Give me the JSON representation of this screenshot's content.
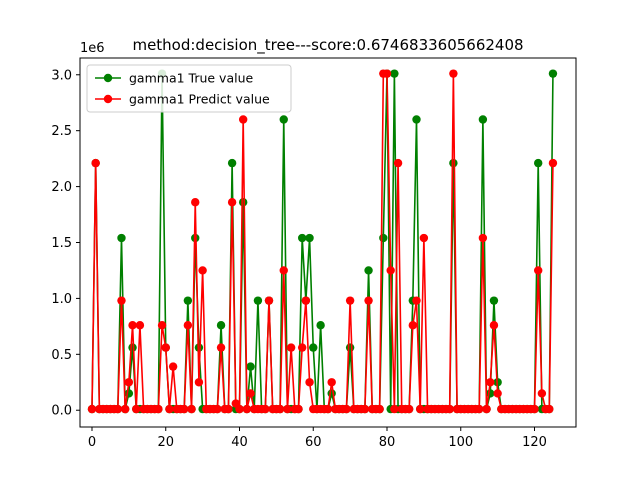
{
  "chart_data": {
    "type": "line",
    "title": "method:decision_tree---score:0.6746833605662408",
    "xlabel": "",
    "ylabel": "",
    "y_offset_label": "1e6",
    "xlim": [
      -3.25,
      131.25
    ],
    "ylim": [
      -0.15,
      3.15
    ],
    "x_ticks": [
      0,
      20,
      40,
      60,
      80,
      100,
      120
    ],
    "y_ticks": [
      0.0,
      0.5,
      1.0,
      1.5,
      2.0,
      2.5,
      3.0
    ],
    "y_tick_labels": [
      "0.0",
      "0.5",
      "1.0",
      "1.5",
      "2.0",
      "2.5",
      "3.0"
    ],
    "grid": false,
    "legend_position": "top-left",
    "series": [
      {
        "name": "gamma1 True value",
        "color": "#008000",
        "values": [
          0.01,
          2.21,
          0.01,
          0.01,
          0.01,
          0.01,
          0.01,
          0.01,
          1.54,
          0.01,
          0.15,
          0.56,
          0.01,
          0.01,
          0.01,
          0.01,
          0.01,
          0.01,
          0.01,
          3.01,
          0.56,
          0.01,
          0.01,
          0.01,
          0.01,
          0.01,
          0.98,
          0.01,
          1.54,
          0.56,
          0.01,
          0.01,
          0.01,
          0.01,
          0.01,
          0.76,
          0.01,
          0.01,
          2.21,
          0.01,
          0.01,
          1.86,
          0.01,
          0.39,
          0.01,
          0.98,
          0.01,
          0.01,
          0.98,
          0.01,
          0.01,
          0.01,
          2.6,
          0.01,
          0.01,
          0.01,
          0.01,
          1.54,
          0.98,
          1.54,
          0.56,
          0.01,
          0.76,
          0.01,
          0.01,
          0.15,
          0.01,
          0.01,
          0.01,
          0.01,
          0.56,
          0.01,
          0.01,
          0.01,
          0.01,
          1.25,
          0.01,
          0.01,
          0.01,
          1.54,
          3.01,
          0.01,
          3.01,
          0.01,
          0.01,
          0.01,
          0.01,
          0.98,
          2.6,
          0.01,
          0.01,
          0.01,
          0.01,
          0.01,
          0.01,
          0.01,
          0.01,
          0.01,
          2.21,
          0.01,
          0.01,
          0.01,
          0.01,
          0.01,
          0.01,
          0.01,
          2.6,
          0.01,
          0.15,
          0.98,
          0.25,
          0.01,
          0.01,
          0.01,
          0.01,
          0.01,
          0.01,
          0.01,
          0.01,
          0.01,
          0.01,
          2.21,
          0.01,
          0.01,
          0.01,
          3.01
        ]
      },
      {
        "name": "gamma1 Predict value",
        "color": "#ff0000",
        "values": [
          0.01,
          2.21,
          0.01,
          0.01,
          0.01,
          0.01,
          0.01,
          0.01,
          0.98,
          0.01,
          0.25,
          0.76,
          0.01,
          0.76,
          0.01,
          0.01,
          0.01,
          0.01,
          0.01,
          0.76,
          0.56,
          0.01,
          0.39,
          0.01,
          0.01,
          0.01,
          0.76,
          0.01,
          1.86,
          0.25,
          1.25,
          0.01,
          0.01,
          0.01,
          0.01,
          0.56,
          0.01,
          0.01,
          1.86,
          0.06,
          0.01,
          2.6,
          0.01,
          0.15,
          0.01,
          0.01,
          0.01,
          0.01,
          0.98,
          0.01,
          0.01,
          0.01,
          1.25,
          0.01,
          0.56,
          0.01,
          0.01,
          0.56,
          0.98,
          0.25,
          0.01,
          0.01,
          0.01,
          0.01,
          0.01,
          0.25,
          0.01,
          0.01,
          0.01,
          0.01,
          0.98,
          0.01,
          0.01,
          0.01,
          0.01,
          0.98,
          0.01,
          0.01,
          0.01,
          3.01,
          3.01,
          1.25,
          0.01,
          2.21,
          0.01,
          0.01,
          0.01,
          0.76,
          0.98,
          0.01,
          1.54,
          0.01,
          0.01,
          0.01,
          0.01,
          0.01,
          0.01,
          0.01,
          3.01,
          0.01,
          0.01,
          0.01,
          0.01,
          0.01,
          0.01,
          0.01,
          1.54,
          0.01,
          0.25,
          0.76,
          0.15,
          0.01,
          0.01,
          0.01,
          0.01,
          0.01,
          0.01,
          0.01,
          0.01,
          0.01,
          0.01,
          1.25,
          0.15,
          0.01,
          0.01,
          2.21
        ]
      }
    ]
  }
}
